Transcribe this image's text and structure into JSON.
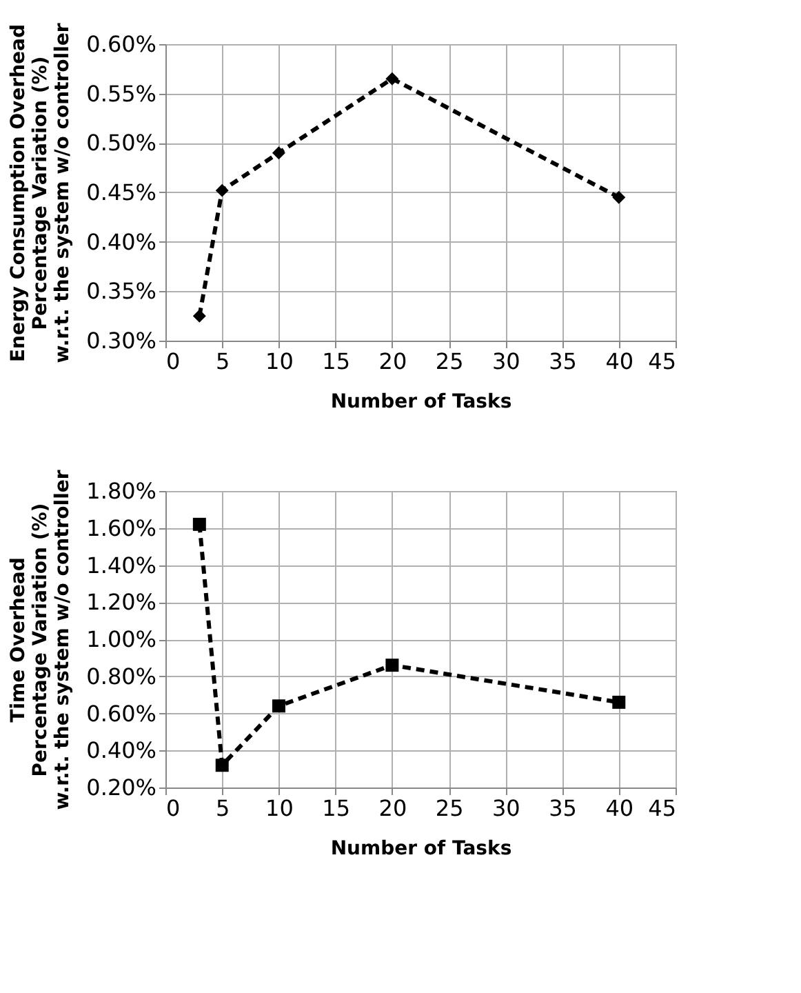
{
  "chart_data": [
    {
      "type": "line",
      "xlabel": "Number of Tasks",
      "ylabel": "Energy Consumption Overhead\nPercentage Variation (%)\nw.r.t. the system w/o controller",
      "x": [
        3,
        5,
        10,
        20,
        40
      ],
      "series": [
        {
          "color": "#000000",
          "values": [
            0.325,
            0.452,
            0.49,
            0.565,
            0.445
          ]
        }
      ],
      "xlim": [
        0,
        45
      ],
      "xticks": [
        0,
        5,
        10,
        15,
        20,
        25,
        30,
        35,
        40,
        45
      ],
      "ylim": [
        0.3,
        0.6
      ],
      "yticks": [
        {
          "value": 0.3,
          "label": "0.30%"
        },
        {
          "value": 0.35,
          "label": "0.35%"
        },
        {
          "value": 0.4,
          "label": "0.40%"
        },
        {
          "value": 0.45,
          "label": "0.45%"
        },
        {
          "value": 0.5,
          "label": "0.50%"
        },
        {
          "value": 0.55,
          "label": "0.55%"
        },
        {
          "value": 0.6,
          "label": "0.60%"
        }
      ],
      "grid": true,
      "marker": "diamond",
      "line_style": "dashed"
    },
    {
      "type": "line",
      "xlabel": "Number of Tasks",
      "ylabel": "Time Overhead\nPercentage Variation (%)\nw.r.t. the system w/o controller",
      "x": [
        3,
        5,
        10,
        20,
        40
      ],
      "series": [
        {
          "color": "#000000",
          "values": [
            1.62,
            0.32,
            0.64,
            0.86,
            0.66
          ]
        }
      ],
      "xlim": [
        0,
        45
      ],
      "xticks": [
        0,
        5,
        10,
        15,
        20,
        25,
        30,
        35,
        40,
        45
      ],
      "ylim": [
        0.2,
        1.8
      ],
      "yticks": [
        {
          "value": 0.2,
          "label": "0.20%"
        },
        {
          "value": 0.4,
          "label": "0.40%"
        },
        {
          "value": 0.6,
          "label": "0.60%"
        },
        {
          "value": 0.8,
          "label": "0.80%"
        },
        {
          "value": 1.0,
          "label": "1.00%"
        },
        {
          "value": 1.2,
          "label": "1.20%"
        },
        {
          "value": 1.4,
          "label": "1.40%"
        },
        {
          "value": 1.6,
          "label": "1.60%"
        },
        {
          "value": 1.8,
          "label": "1.80%"
        }
      ],
      "grid": true,
      "marker": "square",
      "line_style": "dashed"
    }
  ]
}
